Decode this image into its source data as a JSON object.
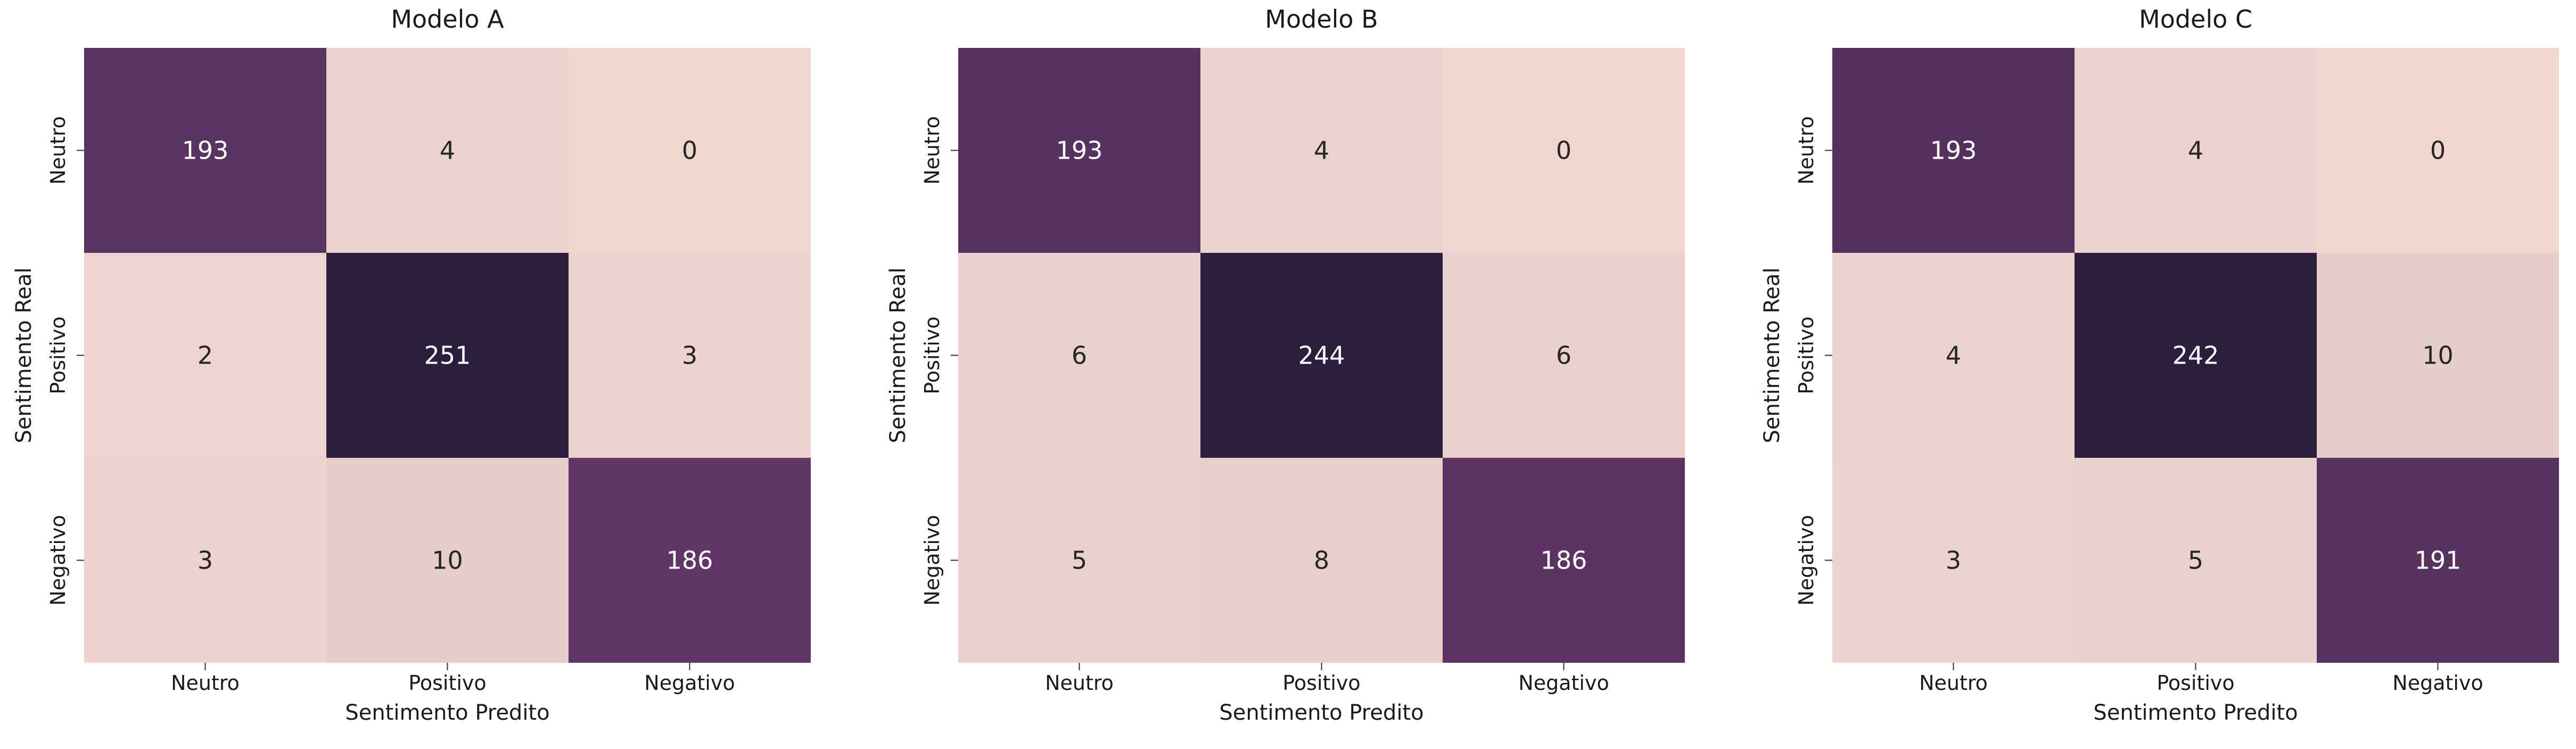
{
  "chart_data": [
    {
      "type": "heatmap",
      "title": "Modelo A",
      "xlabel": "Sentimento Predito",
      "ylabel": "Sentimento Real",
      "x_categories": [
        "Neutro",
        "Positivo",
        "Negativo"
      ],
      "y_categories": [
        "Neutro",
        "Positivo",
        "Negativo"
      ],
      "values": [
        [
          193,
          4,
          0
        ],
        [
          2,
          251,
          3
        ],
        [
          3,
          10,
          186
        ]
      ],
      "colorbar": false
    },
    {
      "type": "heatmap",
      "title": "Modelo B",
      "xlabel": "Sentimento Predito",
      "ylabel": "Sentimento Real",
      "x_categories": [
        "Neutro",
        "Positivo",
        "Negativo"
      ],
      "y_categories": [
        "Neutro",
        "Positivo",
        "Negativo"
      ],
      "values": [
        [
          193,
          4,
          0
        ],
        [
          6,
          244,
          6
        ],
        [
          5,
          8,
          186
        ]
      ],
      "colorbar": false
    },
    {
      "type": "heatmap",
      "title": "Modelo C",
      "xlabel": "Sentimento Predito",
      "ylabel": "Sentimento Real",
      "x_categories": [
        "Neutro",
        "Positivo",
        "Negativo"
      ],
      "y_categories": [
        "Neutro",
        "Positivo",
        "Negativo"
      ],
      "values": [
        [
          193,
          4,
          0
        ],
        [
          4,
          242,
          10
        ],
        [
          3,
          5,
          191
        ]
      ],
      "colorbar": false
    }
  ],
  "colors": {
    "low": "#efd6cf",
    "high": "#2d1e3e",
    "text_light": "#ffffff",
    "text_dark": "#262626",
    "axis_text": "#1a1a1a"
  }
}
